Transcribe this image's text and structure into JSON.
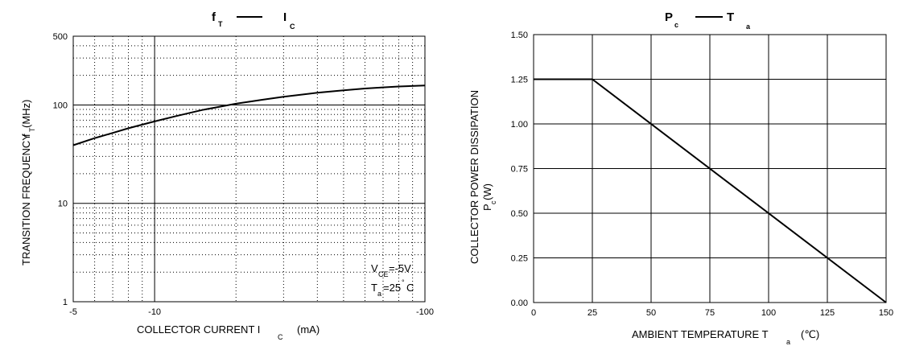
{
  "chart_data": [
    {
      "type": "line",
      "title": {
        "main": "f",
        "main_sub": "T",
        "dash": "—",
        "second": "I",
        "second_sub": "C"
      },
      "xlabel": {
        "text": "COLLECTOR CURRENT I",
        "sub": "C",
        "unit": "(mA)"
      },
      "ylabel": {
        "text": "TRANSITION FREQUENCY",
        "unit_main": "f",
        "unit_sub": "T",
        "unit_rest": "(MHz)"
      },
      "x_scale": "log",
      "y_scale": "log",
      "xlim": [
        -5,
        -100
      ],
      "ylim": [
        1,
        500
      ],
      "x_ticks": [
        {
          "value": -5,
          "label": "-5"
        },
        {
          "value": -10,
          "label": "-10"
        },
        {
          "value": -100,
          "label": "-100"
        }
      ],
      "y_ticks": [
        {
          "value": 1,
          "label": "1"
        },
        {
          "value": 10,
          "label": "10"
        },
        {
          "value": 100,
          "label": "100"
        },
        {
          "value": 500,
          "label": "500"
        }
      ],
      "grid": "dotted minor grid with solid major lines at 10 mA, 10 MHz and 100 MHz",
      "annotations": [
        {
          "main": "V",
          "sub": "CE",
          "rest": "=-5V"
        },
        {
          "main": "T",
          "sub": "a",
          "rest": "=25",
          "deg": "°",
          "unit": "C"
        }
      ],
      "series": [
        {
          "x": [
            -5,
            -6,
            -7,
            -8,
            -10,
            -12,
            -15,
            -20,
            -25,
            -30,
            -40,
            -50,
            -60,
            -70,
            -80,
            -100
          ],
          "y": [
            39,
            46,
            52,
            58,
            68,
            77,
            89,
            103,
            113,
            121,
            133,
            141,
            147,
            151,
            154,
            158
          ]
        }
      ]
    },
    {
      "type": "line",
      "title": {
        "main": "P",
        "main_sub": "c",
        "dash": "—",
        "second": "T",
        "second_sub": "a"
      },
      "xlabel": {
        "text": "AMBIENT TEMPERATURE T",
        "sub": "a",
        "unit": "(℃)"
      },
      "ylabel": {
        "text": "COLLECTOR POWER DISSIPATION",
        "unit_main": "P",
        "unit_sub": "c",
        "unit_rest": "(W)"
      },
      "xlim": [
        0,
        150
      ],
      "ylim": [
        0,
        1.5
      ],
      "x_ticks": [
        {
          "value": 0,
          "label": "0"
        },
        {
          "value": 25,
          "label": "25"
        },
        {
          "value": 50,
          "label": "50"
        },
        {
          "value": 75,
          "label": "75"
        },
        {
          "value": 100,
          "label": "100"
        },
        {
          "value": 125,
          "label": "125"
        },
        {
          "value": 150,
          "label": "150"
        }
      ],
      "y_ticks": [
        {
          "value": 0,
          "label": "0.00"
        },
        {
          "value": 0.25,
          "label": "0.25"
        },
        {
          "value": 0.5,
          "label": "0.50"
        },
        {
          "value": 0.75,
          "label": "0.75"
        },
        {
          "value": 1.0,
          "label": "1.00"
        },
        {
          "value": 1.25,
          "label": "1.25"
        },
        {
          "value": 1.5,
          "label": "1.50"
        }
      ],
      "grid": "solid grid",
      "series": [
        {
          "x": [
            0,
            25,
            150
          ],
          "y": [
            1.25,
            1.25,
            0
          ]
        }
      ]
    }
  ]
}
